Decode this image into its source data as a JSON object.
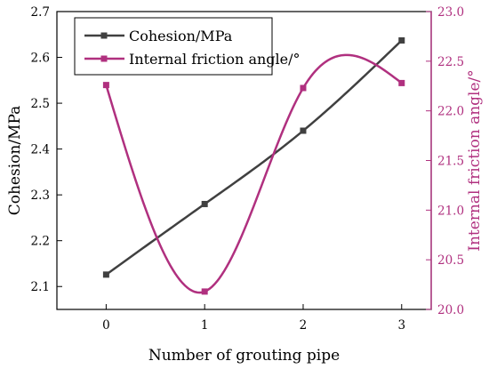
{
  "chart_data": {
    "type": "line",
    "x": [
      0,
      1,
      2,
      3
    ],
    "xlabel": "Number of grouting pipe",
    "xlim": [
      -0.5,
      3.3
    ],
    "xticks": [
      "0",
      "1",
      "2",
      "3"
    ],
    "left_axis": {
      "label": "Cohesion/MPa",
      "ylim": [
        2.05,
        2.7
      ],
      "ticks": [
        "2.1",
        "2.2",
        "2.3",
        "2.4",
        "2.5",
        "2.6",
        "2.7"
      ]
    },
    "right_axis": {
      "label": "Internal friction angle/°",
      "ylim": [
        20.0,
        23.0
      ],
      "ticks": [
        "20.0",
        "20.5",
        "21.0",
        "21.5",
        "22.0",
        "22.5",
        "23.0"
      ],
      "color": "#b0307f"
    },
    "series": [
      {
        "name": "Cohesion/MPa",
        "axis": "left",
        "values": [
          2.126,
          2.28,
          2.44,
          2.637
        ],
        "color": "#404040",
        "marker": "square",
        "smooth": true
      },
      {
        "name": "Internal friction angle/°",
        "axis": "right",
        "values": [
          22.26,
          20.18,
          22.23,
          22.28
        ],
        "color": "#b0307f",
        "marker": "square",
        "smooth": true
      }
    ],
    "grid": false,
    "legend": "top-left"
  }
}
